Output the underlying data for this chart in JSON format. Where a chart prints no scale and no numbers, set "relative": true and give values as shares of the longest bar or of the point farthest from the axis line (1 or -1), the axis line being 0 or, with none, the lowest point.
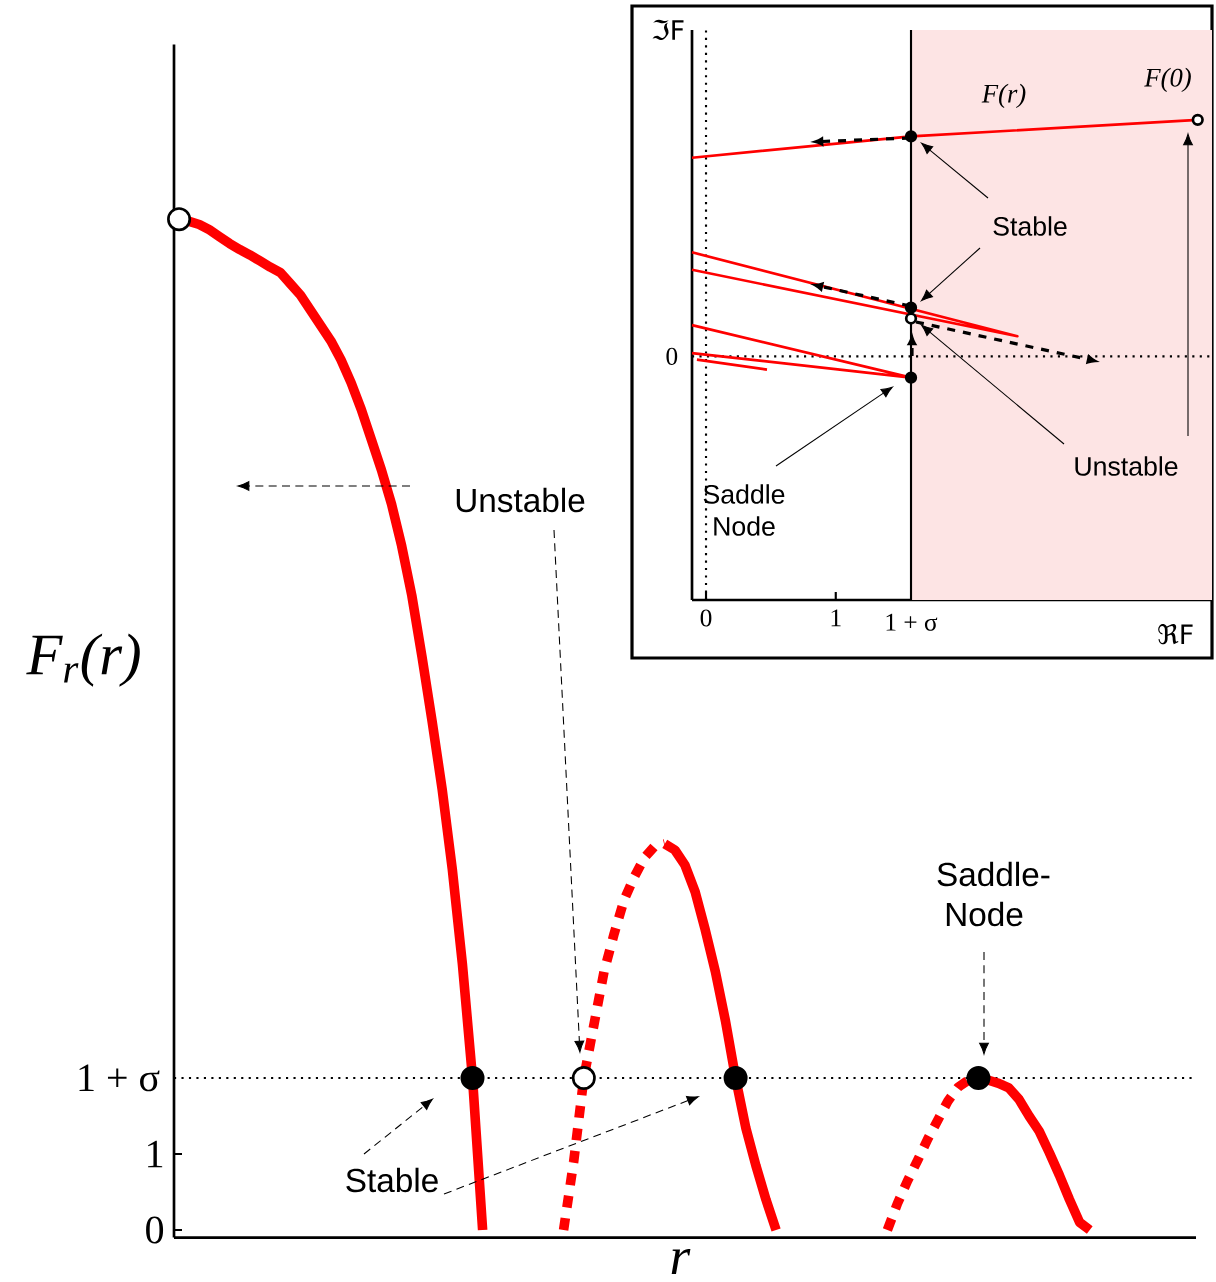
{
  "chart_data": [
    {
      "type": "line",
      "xlabel": "r",
      "ylabel": "F$_{r}$(r)",
      "ylim": [
        -0.1,
        15.6
      ],
      "yticks": [
        0,
        1
      ],
      "categories": [
        null,
        null,
        null,
        null,
        null,
        null,
        null,
        null,
        null,
        null,
        null,
        null,
        null,
        null,
        null,
        null,
        null,
        null,
        null,
        null,
        null,
        null,
        null,
        null,
        null,
        null,
        null,
        null,
        null,
        null,
        null,
        null,
        null,
        null,
        null,
        null,
        null,
        null,
        null,
        null,
        null,
        null,
        null,
        null,
        null,
        null,
        null,
        null,
        null,
        null,
        null,
        null,
        null,
        null,
        null,
        null,
        null,
        null,
        null,
        null,
        null,
        null,
        null,
        null,
        null,
        null,
        null,
        null,
        null,
        null,
        null,
        null,
        null,
        null,
        null,
        null,
        null,
        null,
        null,
        null,
        null,
        null,
        null,
        null,
        null,
        null,
        null,
        null,
        null,
        null,
        null,
        null,
        null,
        null,
        null,
        null,
        null,
        null,
        null,
        null,
        null
      ],
      "series": [
        {
          "color": "#ff0000",
          "line_style": "solid",
          "marker": "none",
          "values": [
            13.29,
            13.27,
            13.23,
            13.16,
            13.07,
            12.98,
            12.9,
            12.83,
            12.75,
            12.67,
            12.6,
            12.45,
            12.3,
            12.1,
            11.9,
            11.7,
            11.45,
            11.15,
            10.8,
            10.4,
            10.0,
            9.55,
            9.0,
            8.35,
            7.55,
            6.7,
            5.8,
            4.75,
            3.5,
            2.0,
            0,
            null,
            null,
            null,
            null,
            null,
            null,
            null,
            null,
            null,
            null,
            null,
            null,
            null,
            null,
            null,
            null,
            null,
            null,
            null,
            null,
            null,
            null,
            null,
            null,
            null,
            null,
            null,
            null,
            null,
            null,
            null,
            null,
            null,
            null,
            null,
            null,
            null,
            null,
            null,
            null,
            null,
            null,
            null,
            null,
            null,
            null,
            null,
            null,
            null,
            null,
            null,
            null,
            null,
            null,
            null,
            null,
            null,
            null,
            null,
            null,
            null,
            null,
            null,
            null,
            null,
            null,
            null,
            null,
            null,
            null
          ]
        },
        {
          "color": "#ff0000",
          "line_style": "dashed",
          "marker": "none",
          "values": [
            null,
            null,
            null,
            null,
            null,
            null,
            null,
            null,
            null,
            null,
            null,
            null,
            null,
            null,
            null,
            null,
            null,
            null,
            null,
            null,
            null,
            null,
            null,
            null,
            null,
            null,
            null,
            null,
            null,
            null,
            null,
            null,
            null,
            null,
            null,
            null,
            null,
            null,
            0,
            0.9,
            2.0,
            2.7,
            3.4,
            3.9,
            4.35,
            4.65,
            4.9,
            5.05,
            5.08,
            null,
            null,
            null,
            null,
            null,
            null,
            null,
            null,
            null,
            null,
            null,
            null,
            null,
            null,
            null,
            null,
            null,
            null,
            null,
            null,
            null,
            null,
            null,
            null,
            null,
            null,
            null,
            null,
            null,
            null,
            null,
            null,
            null,
            null,
            null,
            null,
            null,
            null,
            null,
            null,
            null,
            null,
            null,
            null,
            null,
            null,
            null,
            null,
            null,
            null,
            null,
            null
          ]
        },
        {
          "color": "#ff0000",
          "line_style": "solid",
          "marker": "none",
          "values": [
            null,
            null,
            null,
            null,
            null,
            null,
            null,
            null,
            null,
            null,
            null,
            null,
            null,
            null,
            null,
            null,
            null,
            null,
            null,
            null,
            null,
            null,
            null,
            null,
            null,
            null,
            null,
            null,
            null,
            null,
            null,
            null,
            null,
            null,
            null,
            null,
            null,
            null,
            null,
            null,
            null,
            null,
            null,
            null,
            null,
            null,
            null,
            null,
            5.08,
            5.0,
            4.8,
            4.45,
            3.95,
            3.4,
            2.75,
            2.0,
            1.35,
            0.85,
            0.4,
            0,
            null,
            null,
            null,
            null,
            null,
            null,
            null,
            null,
            null,
            null,
            null,
            null,
            null,
            null,
            null,
            null,
            null,
            null,
            null,
            null,
            null,
            null,
            null,
            null,
            null,
            null,
            null,
            null,
            null,
            null,
            null,
            null,
            null,
            null,
            null,
            null,
            null,
            null,
            null,
            null,
            null
          ]
        },
        {
          "color": "#ff0000",
          "line_style": "dashed",
          "marker": "none",
          "values": [
            null,
            null,
            null,
            null,
            null,
            null,
            null,
            null,
            null,
            null,
            null,
            null,
            null,
            null,
            null,
            null,
            null,
            null,
            null,
            null,
            null,
            null,
            null,
            null,
            null,
            null,
            null,
            null,
            null,
            null,
            null,
            null,
            null,
            null,
            null,
            null,
            null,
            null,
            null,
            null,
            null,
            null,
            null,
            null,
            null,
            null,
            null,
            null,
            null,
            null,
            null,
            null,
            null,
            null,
            null,
            null,
            null,
            null,
            null,
            null,
            null,
            null,
            null,
            null,
            null,
            null,
            null,
            null,
            null,
            null,
            0,
            0.35,
            0.65,
            0.92,
            1.2,
            1.45,
            1.7,
            1.88,
            1.97,
            2.0,
            null,
            null,
            null,
            null,
            null,
            null,
            null,
            null,
            null,
            null,
            null,
            null,
            null,
            null,
            null,
            null,
            null,
            null,
            null,
            null,
            null
          ]
        },
        {
          "color": "#ff0000",
          "line_style": "solid",
          "marker": "none",
          "values": [
            null,
            null,
            null,
            null,
            null,
            null,
            null,
            null,
            null,
            null,
            null,
            null,
            null,
            null,
            null,
            null,
            null,
            null,
            null,
            null,
            null,
            null,
            null,
            null,
            null,
            null,
            null,
            null,
            null,
            null,
            null,
            null,
            null,
            null,
            null,
            null,
            null,
            null,
            null,
            null,
            null,
            null,
            null,
            null,
            null,
            null,
            null,
            null,
            null,
            null,
            null,
            null,
            null,
            null,
            null,
            null,
            null,
            null,
            null,
            null,
            null,
            null,
            null,
            null,
            null,
            null,
            null,
            null,
            null,
            null,
            null,
            null,
            null,
            null,
            null,
            null,
            null,
            null,
            null,
            2.0,
            1.97,
            1.93,
            1.87,
            1.72,
            1.5,
            1.3,
            1.02,
            0.72,
            0.4,
            0.1,
            0,
            null,
            null,
            null,
            null,
            null,
            null,
            null,
            null,
            null,
            null
          ]
        },
        {
          "type": "scatter",
          "color": "#000000",
          "marker": "circle",
          "values": [
            null,
            null,
            null,
            null,
            null,
            null,
            null,
            null,
            null,
            null,
            null,
            null,
            null,
            null,
            null,
            null,
            null,
            null,
            null,
            null,
            null,
            null,
            null,
            null,
            null,
            null,
            null,
            null,
            null,
            2,
            null,
            null,
            null,
            null,
            null,
            null,
            null,
            null,
            null,
            null,
            null,
            null,
            null,
            null,
            null,
            null,
            null,
            null,
            null,
            null,
            null,
            null,
            null,
            null,
            null,
            2,
            null,
            null,
            null,
            null,
            null,
            null,
            null,
            null,
            null,
            null,
            null,
            null,
            null,
            null,
            null,
            null,
            null,
            null,
            null,
            null,
            null,
            null,
            null,
            null,
            null,
            null,
            null,
            null,
            null,
            null,
            null,
            null,
            null,
            null,
            null,
            null,
            null,
            null,
            null,
            null,
            null,
            null,
            null,
            null,
            null
          ]
        },
        {
          "type": "scatter",
          "color": "#ffffff",
          "marker": "circle",
          "values": [
            13.3,
            null,
            null,
            null,
            null,
            null,
            null,
            null,
            null,
            null,
            null,
            null,
            null,
            null,
            null,
            null,
            null,
            null,
            null,
            null,
            null,
            null,
            null,
            null,
            null,
            null,
            null,
            null,
            null,
            null,
            null,
            null,
            null,
            null,
            null,
            null,
            null,
            null,
            null,
            null,
            2,
            null,
            null,
            null,
            null,
            null,
            null,
            null,
            null,
            null,
            null,
            null,
            null,
            null,
            null,
            null,
            null,
            null,
            null,
            null,
            null,
            null,
            null,
            null,
            null,
            null,
            null,
            null,
            null,
            null,
            null,
            null,
            null,
            null,
            null,
            null,
            null,
            null,
            null,
            null,
            null,
            null,
            null,
            null,
            null,
            null,
            null,
            null,
            null,
            null,
            null,
            null,
            null,
            null,
            null,
            null,
            null,
            null,
            null,
            null,
            null
          ]
        },
        {
          "type": "scatter",
          "color": "#000000",
          "marker": "circle",
          "values": [
            null,
            null,
            null,
            null,
            null,
            null,
            null,
            null,
            null,
            null,
            null,
            null,
            null,
            null,
            null,
            null,
            null,
            null,
            null,
            null,
            null,
            null,
            null,
            null,
            null,
            null,
            null,
            null,
            null,
            null,
            null,
            null,
            null,
            null,
            null,
            null,
            null,
            null,
            null,
            null,
            null,
            null,
            null,
            null,
            null,
            null,
            null,
            null,
            null,
            null,
            null,
            null,
            null,
            null,
            null,
            null,
            null,
            null,
            null,
            null,
            null,
            null,
            null,
            null,
            null,
            null,
            null,
            null,
            null,
            null,
            null,
            null,
            null,
            null,
            null,
            null,
            null,
            null,
            null,
            2,
            null,
            null,
            null,
            null,
            null,
            null,
            null,
            null,
            null,
            null,
            null,
            null,
            null,
            null,
            null,
            null,
            null,
            null,
            null,
            null,
            null
          ]
        }
      ],
      "ref_lines": [
        {
          "axis": "y",
          "value": 2,
          "label": "1 + σ",
          "color": "#000000",
          "line_style": "dotted"
        }
      ],
      "annotations": [
        "Unstable",
        "Stable",
        "Saddle-Node"
      ]
    },
    {
      "type": "line",
      "relative": true,
      "xlabel": "ℜF",
      "ylabel": "ℑF",
      "xlim": [
        -0.108,
        3.9
      ],
      "xticks": [
        0,
        1
      ],
      "series": [
        {
          "color": "#ff0000",
          "line_style": "solid",
          "marker": "none",
          "x": [
            3.79,
            1.58,
            -0.108,
            null,
            -0.108,
            2.4,
            -0.108,
            null,
            -0.108,
            1.58,
            -0.108,
            null,
            -0.07,
            0.47
          ],
          "values": [
            1.0,
            0.93,
            0.84,
            null,
            0.44,
            0.085,
            0.366,
            null,
            0.132,
            -0.09,
            0.014,
            null,
            -0.014,
            -0.056
          ]
        },
        {
          "type": "scatter",
          "color": "#000000",
          "marker": "circle",
          "x": [
            1.58,
            1.58,
            1.58
          ],
          "values": [
            0.93,
            0.206,
            -0.09
          ]
        },
        {
          "type": "scatter",
          "color": "#ffffff",
          "marker": "circle",
          "x": [
            3.79,
            1.58
          ],
          "values": [
            1.0,
            0.16
          ]
        }
      ],
      "bands": [
        {
          "axis": "x",
          "from": 1.58,
          "to": 3.9,
          "color": "#fde4e4"
        }
      ],
      "ref_lines": [
        {
          "axis": "x",
          "value": 0,
          "color": "#000000",
          "line_style": "dotted"
        },
        {
          "axis": "x",
          "value": 1.58,
          "label": "1 + σ",
          "color": "#000000",
          "line_style": "solid"
        },
        {
          "axis": "y",
          "value": 0,
          "label": "0",
          "color": "#000000",
          "line_style": "dotted"
        }
      ],
      "annotations": [
        "F(r)",
        "F(0)",
        "Stable",
        "Unstable",
        "Saddle Node"
      ]
    }
  ]
}
